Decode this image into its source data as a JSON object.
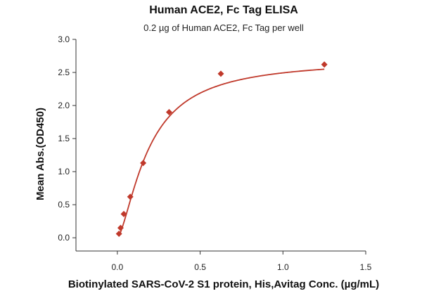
{
  "chart_data": {
    "type": "scatter",
    "title": "Human ACE2, Fc Tag ELISA",
    "subtitle": "0.2 µg of Human ACE2, Fc Tag per well",
    "xlabel": "Biotinylated SARS-CoV-2 S1 protein, His,Avitag Conc. (µg/mL)",
    "ylabel": "Mean Abs.(OD450)",
    "xlim": [
      -0.25,
      1.5
    ],
    "ylim": [
      -0.2,
      3.0
    ],
    "x_ticks": [
      0.0,
      0.5,
      1.0,
      1.5
    ],
    "x_tick_labels": [
      "0.0",
      "0.5",
      "1.0",
      "1.5"
    ],
    "y_ticks": [
      0.0,
      0.5,
      1.0,
      1.5,
      2.0,
      2.5,
      3.0
    ],
    "y_tick_labels": [
      "0.0",
      "0.5",
      "1.0",
      "1.5",
      "2.0",
      "2.5",
      "3.0"
    ],
    "grid": false,
    "color": "#c0392b",
    "series": [
      {
        "marker": "diamond",
        "x": [
          0.0098,
          0.0195,
          0.039,
          0.078,
          0.156,
          0.3125,
          0.625,
          1.25
        ],
        "y": [
          0.06,
          0.15,
          0.36,
          0.62,
          1.13,
          1.9,
          2.48,
          2.62
        ]
      }
    ],
    "fit_curve": {
      "type": "4PL",
      "bottom": 0.0,
      "top": 2.7,
      "ec50": 0.19,
      "hill": 1.5
    }
  }
}
